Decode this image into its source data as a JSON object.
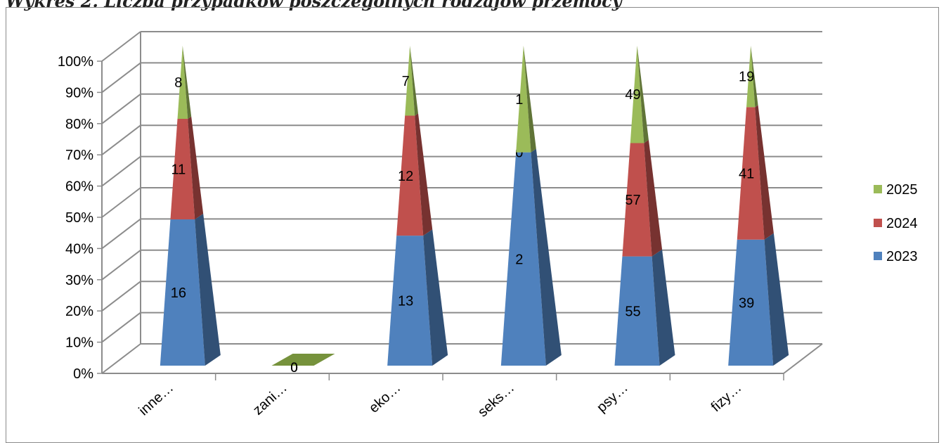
{
  "title": "Wykres 2. Liczba przypadków poszczególnych rodzajów przemocy",
  "chart_data": {
    "type": "bar",
    "stacking": "percent",
    "shape": "3d-pyramid",
    "categories": [
      "inne…",
      "zani…",
      "eko…",
      "seks…",
      "psy…",
      "fizy…"
    ],
    "series": [
      {
        "name": "2023",
        "values": [
          16,
          0,
          13,
          2,
          55,
          39
        ],
        "color": "#4f81bd"
      },
      {
        "name": "2024",
        "values": [
          11,
          0,
          12,
          0,
          57,
          41
        ],
        "color": "#c0504d"
      },
      {
        "name": "2025",
        "values": [
          8,
          0,
          7,
          1,
          49,
          19
        ],
        "color": "#9bbb59"
      }
    ],
    "yticks": [
      "0%",
      "10%",
      "20%",
      "30%",
      "40%",
      "50%",
      "60%",
      "70%",
      "80%",
      "90%",
      "100%"
    ],
    "ylim": [
      0,
      100
    ],
    "grid": true,
    "legend": "right"
  }
}
